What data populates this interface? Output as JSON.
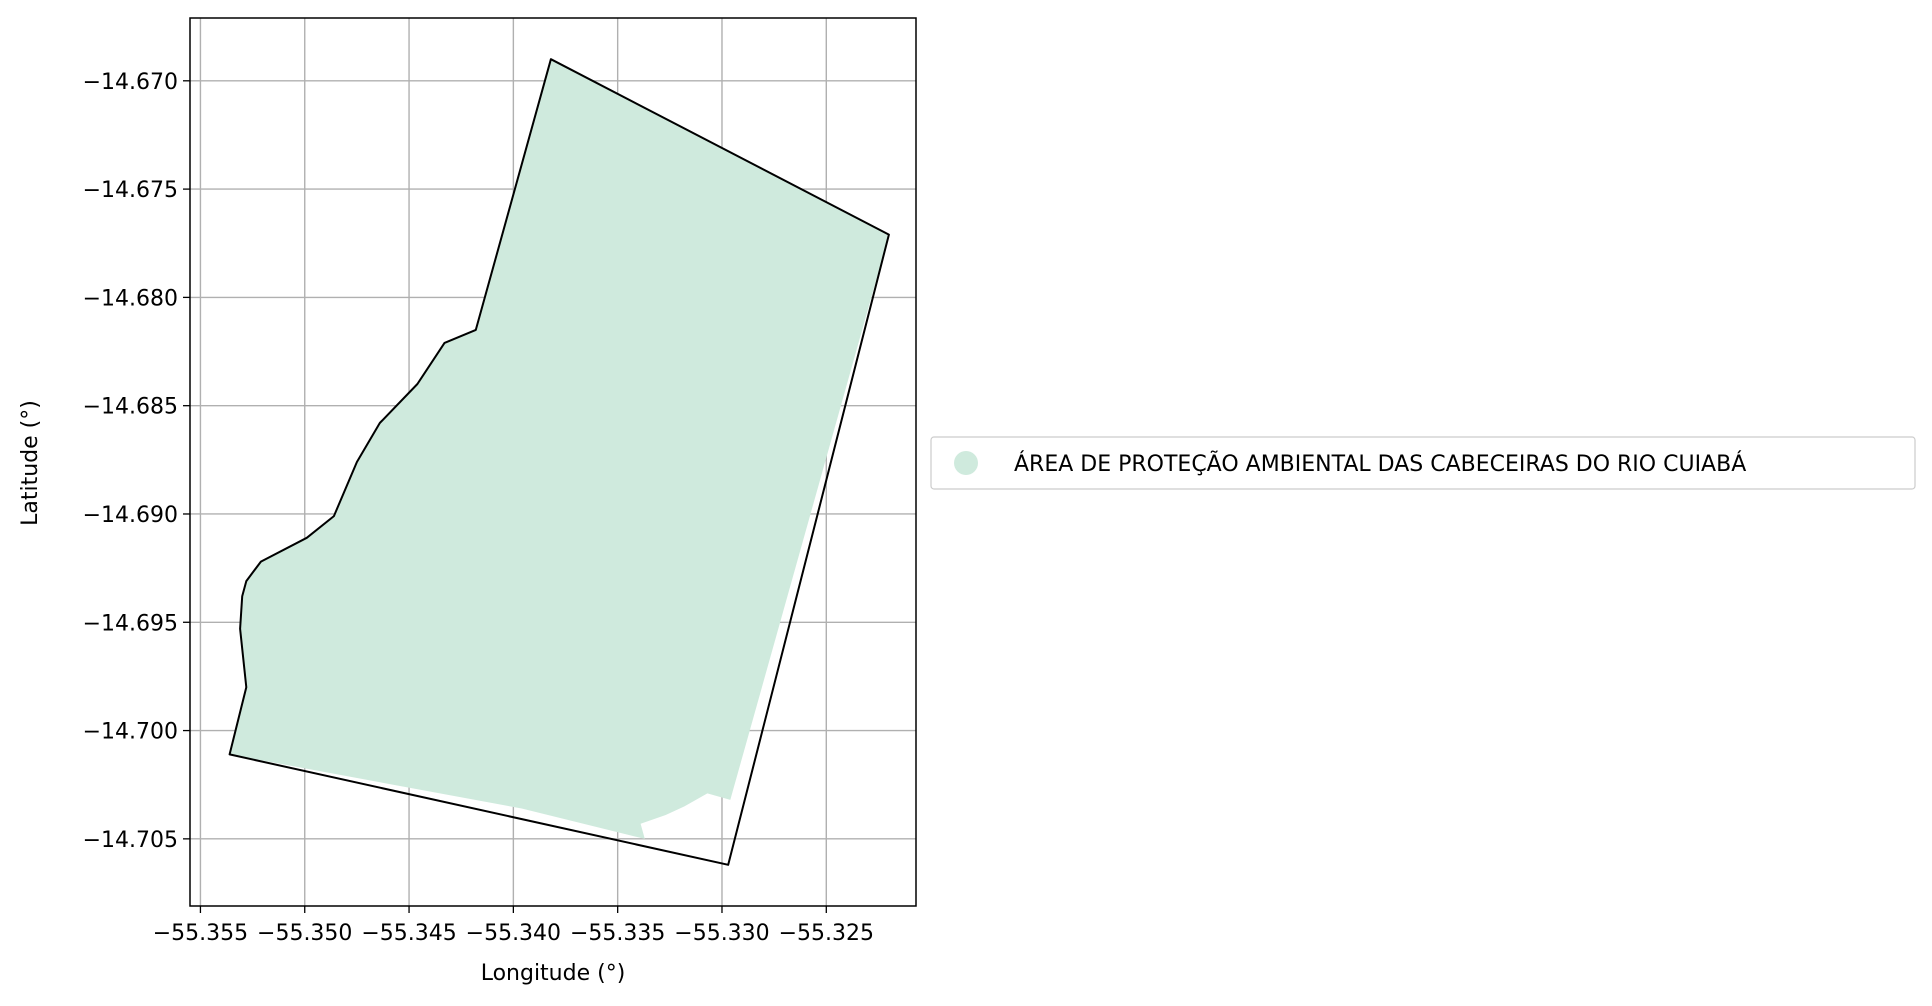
{
  "chart_data": {
    "type": "map",
    "xlabel": "Longitude (°)",
    "ylabel": "Latitude (°)",
    "xlim": [
      -55.3555,
      -55.3207
    ],
    "ylim": [
      -14.7081,
      -14.6671
    ],
    "grid": true,
    "x_ticks": [
      {
        "value": -55.355,
        "label": "−55.355"
      },
      {
        "value": -55.35,
        "label": "−55.350"
      },
      {
        "value": -55.345,
        "label": "−55.345"
      },
      {
        "value": -55.34,
        "label": "−55.340"
      },
      {
        "value": -55.335,
        "label": "−55.335"
      },
      {
        "value": -55.33,
        "label": "−55.330"
      },
      {
        "value": -55.325,
        "label": "−55.325"
      }
    ],
    "y_ticks": [
      {
        "value": -14.67,
        "label": "−14.670"
      },
      {
        "value": -14.675,
        "label": "−14.675"
      },
      {
        "value": -14.68,
        "label": "−14.680"
      },
      {
        "value": -14.685,
        "label": "−14.685"
      },
      {
        "value": -14.69,
        "label": "−14.690"
      },
      {
        "value": -14.695,
        "label": "−14.695"
      },
      {
        "value": -14.7,
        "label": "−14.700"
      },
      {
        "value": -14.705,
        "label": "−14.705"
      }
    ],
    "legend_placement": "center-right outside",
    "series": [
      {
        "name": "ÁREA DE PROTEÇÃO AMBIENTAL DAS CABECEIRAS DO RIO CUIABÁ",
        "fill_color": "#cfeadd",
        "outline_color": "#000000",
        "fill_polygon": [
          [
            -55.3382,
            -14.669
          ],
          [
            -55.322,
            -14.6771
          ],
          [
            -55.3296,
            -14.7032
          ],
          [
            -55.3307,
            -14.7029
          ],
          [
            -55.3318,
            -14.7035
          ],
          [
            -55.3327,
            -14.7039
          ],
          [
            -55.3339,
            -14.7043
          ],
          [
            -55.3337,
            -14.705
          ],
          [
            -55.3396,
            -14.7036
          ],
          [
            -55.3536,
            -14.7011
          ],
          [
            -55.3528,
            -14.698
          ],
          [
            -55.3531,
            -14.6953
          ],
          [
            -55.353,
            -14.6938
          ],
          [
            -55.3528,
            -14.6931
          ],
          [
            -55.3521,
            -14.6922
          ],
          [
            -55.3499,
            -14.6911
          ],
          [
            -55.3486,
            -14.6901
          ],
          [
            -55.3475,
            -14.6876
          ],
          [
            -55.3464,
            -14.6858
          ],
          [
            -55.3446,
            -14.684
          ],
          [
            -55.3433,
            -14.6821
          ],
          [
            -55.3418,
            -14.6815
          ]
        ],
        "outline": [
          [
            -55.3382,
            -14.669
          ],
          [
            -55.322,
            -14.6771
          ],
          [
            -55.3297,
            -14.7062
          ],
          [
            -55.3536,
            -14.7011
          ],
          [
            -55.3528,
            -14.698
          ],
          [
            -55.3531,
            -14.6953
          ],
          [
            -55.353,
            -14.6938
          ],
          [
            -55.3528,
            -14.6931
          ],
          [
            -55.3521,
            -14.6922
          ],
          [
            -55.3499,
            -14.6911
          ],
          [
            -55.3486,
            -14.6901
          ],
          [
            -55.3475,
            -14.6876
          ],
          [
            -55.3464,
            -14.6858
          ],
          [
            -55.3446,
            -14.684
          ],
          [
            -55.3433,
            -14.6821
          ],
          [
            -55.3418,
            -14.6815
          ],
          [
            -55.3382,
            -14.669
          ]
        ]
      }
    ]
  },
  "legend": {
    "items": [
      {
        "label": "ÁREA DE PROTEÇÃO AMBIENTAL DAS CABECEIRAS DO RIO CUIABÁ",
        "color": "#cfeadd"
      }
    ]
  }
}
